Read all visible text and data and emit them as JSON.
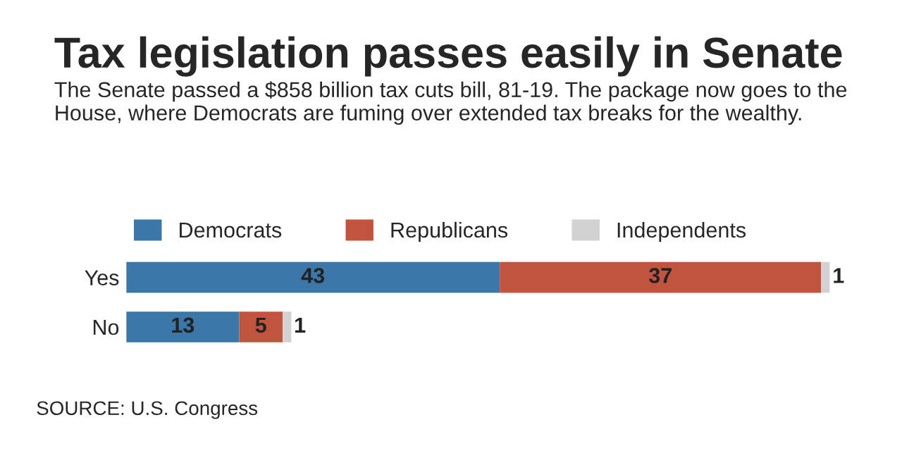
{
  "chart_data": {
    "type": "bar",
    "orientation": "horizontal",
    "stacked": true,
    "title": "Tax legislation passes easily in Senate",
    "subtitle": "The Senate passed a $858 billion tax cuts bill, 81-19. The package now goes to the House, where Democrats are fuming over extended tax breaks for the wealthy.",
    "categories": [
      "Yes",
      "No"
    ],
    "series": [
      {
        "name": "Democrats",
        "color": "#3b77a8",
        "values": [
          43,
          13
        ]
      },
      {
        "name": "Republicans",
        "color": "#c1543f",
        "values": [
          37,
          5
        ]
      },
      {
        "name": "Independents",
        "color": "#d2d2d2",
        "values": [
          1,
          1
        ]
      }
    ],
    "data_labels": true,
    "legend": "top left",
    "tick_labels": "y",
    "grid": false,
    "annotations": [
      "SOURCE: U.S. Congress"
    ]
  }
}
